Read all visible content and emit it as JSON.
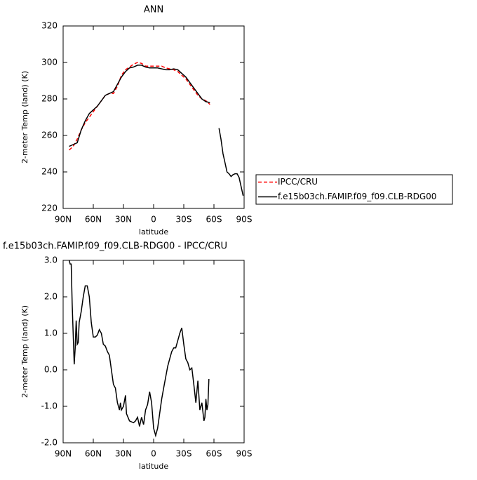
{
  "chart_data": [
    {
      "type": "line",
      "title": "ANN",
      "x_label": "latitude",
      "y_label": "2-meter Temp (land) (K)",
      "x": [
        84,
        80,
        76,
        72,
        68,
        64,
        60,
        56,
        52,
        48,
        44,
        40,
        36,
        32,
        28,
        24,
        20,
        16,
        12,
        8,
        4,
        0,
        -4,
        -8,
        -12,
        -16,
        -20,
        -24,
        -28,
        -32,
        -36,
        -40,
        -44,
        -48,
        -52,
        -56,
        -60,
        -65,
        -67,
        -69,
        -71,
        -73,
        -75,
        -77,
        -79,
        -81,
        -83,
        -85,
        -87,
        -89
      ],
      "series": [
        {
          "name": "IPCC/CRU",
          "color": "#ff0000",
          "dashed": true,
          "values": [
            252,
            254,
            258,
            263,
            267,
            270,
            273,
            276,
            279,
            282,
            283,
            283,
            287,
            293,
            296,
            297.5,
            299,
            300,
            299.5,
            298,
            298,
            298,
            298,
            298,
            297,
            296.5,
            296,
            295,
            293,
            291,
            288,
            285,
            282,
            280,
            279,
            277,
            null,
            null,
            null,
            null,
            null,
            null,
            null,
            null,
            null,
            null,
            null,
            null,
            null,
            null
          ]
        },
        {
          "name": "f.e15b03ch.FAMIP.f09_f09.CLB-RDG00",
          "color": "#000000",
          "dashed": false,
          "values": [
            254,
            255,
            256,
            263,
            268,
            272,
            274,
            276,
            279,
            282,
            283,
            284,
            288,
            292,
            295,
            297,
            297.5,
            298.5,
            298.5,
            297.5,
            297,
            297,
            297,
            296.5,
            296,
            296,
            296.5,
            296,
            294,
            292,
            289,
            286,
            283,
            280,
            278.5,
            278,
            null,
            264,
            258,
            250,
            245,
            240,
            239,
            237.5,
            238.5,
            239,
            239,
            237,
            232,
            227
          ]
        }
      ],
      "xlim": [
        90,
        -90
      ],
      "xticks": [
        {
          "value": 90,
          "label": "90N"
        },
        {
          "value": 60,
          "label": "60N"
        },
        {
          "value": 30,
          "label": "30N"
        },
        0,
        {
          "value": -30,
          "label": "30S"
        },
        {
          "value": -60,
          "label": "60S"
        },
        {
          "value": -90,
          "label": "90S"
        }
      ],
      "ylim": [
        220,
        320
      ],
      "yticks": [
        220,
        240,
        260,
        280,
        300,
        320
      ],
      "legend": "right"
    },
    {
      "type": "line",
      "title": "f.e15b03ch.FAMIP.f09_f09.CLB-RDG00 - IPCC/CRU",
      "x_label": "latitude",
      "y_label": "2-meter Temp (land) (K)",
      "x": [
        84,
        83,
        82,
        81,
        80,
        79,
        78,
        77,
        76,
        75,
        74,
        72,
        70,
        68,
        66,
        64,
        62,
        60,
        58,
        56,
        54,
        52,
        50,
        48,
        46,
        44,
        42,
        40,
        38,
        36,
        34,
        33,
        32,
        30,
        28,
        27,
        24,
        20,
        18,
        16,
        14,
        12,
        10,
        8,
        6,
        4,
        2,
        0,
        -2,
        -4,
        -6,
        -8,
        -10,
        -12,
        -14,
        -16,
        -18,
        -20,
        -22,
        -24,
        -26,
        -28,
        -30,
        -32,
        -34,
        -36,
        -38,
        -40,
        -42,
        -44,
        -46,
        -48,
        -50,
        -51,
        -52,
        -53,
        -54,
        -55
      ],
      "series": [
        {
          "color": "#000000",
          "dashed": false,
          "values": [
            3.0,
            2.9,
            2.9,
            1.8,
            1.0,
            0.15,
            0.6,
            1.35,
            0.7,
            0.75,
            1.3,
            1.6,
            2.0,
            2.3,
            2.3,
            2.0,
            1.3,
            0.9,
            0.9,
            0.95,
            1.1,
            1.0,
            0.7,
            0.65,
            0.5,
            0.4,
            0.0,
            -0.4,
            -0.5,
            -0.9,
            -1.1,
            -0.9,
            -1.1,
            -1.0,
            -0.7,
            -1.2,
            -1.4,
            -1.45,
            -1.4,
            -1.3,
            -1.55,
            -1.3,
            -1.5,
            -1.1,
            -0.95,
            -0.6,
            -0.9,
            -1.6,
            -1.8,
            -1.6,
            -1.2,
            -0.8,
            -0.5,
            -0.2,
            0.1,
            0.3,
            0.5,
            0.6,
            0.6,
            0.8,
            1.0,
            1.15,
            0.7,
            0.3,
            0.2,
            0.0,
            0.05,
            -0.4,
            -0.9,
            -0.3,
            -1.1,
            -0.9,
            -1.4,
            -1.3,
            -0.8,
            -1.1,
            -0.95,
            -0.25
          ]
        }
      ],
      "xlim": [
        90,
        -90
      ],
      "xticks": [
        {
          "value": 90,
          "label": "90N"
        },
        {
          "value": 60,
          "label": "60N"
        },
        {
          "value": 30,
          "label": "30N"
        },
        0,
        {
          "value": -30,
          "label": "30S"
        },
        {
          "value": -60,
          "label": "60S"
        },
        {
          "value": -90,
          "label": "90S"
        }
      ],
      "ylim": [
        -2,
        3
      ],
      "yticks": [
        {
          "value": -2,
          "label": "-2.0"
        },
        {
          "value": -1,
          "label": "-1.0"
        },
        {
          "value": 0,
          "label": "0.0"
        },
        {
          "value": 1,
          "label": "1.0"
        },
        {
          "value": 2,
          "label": "2.0"
        },
        {
          "value": 3,
          "label": "3.0"
        }
      ]
    }
  ]
}
